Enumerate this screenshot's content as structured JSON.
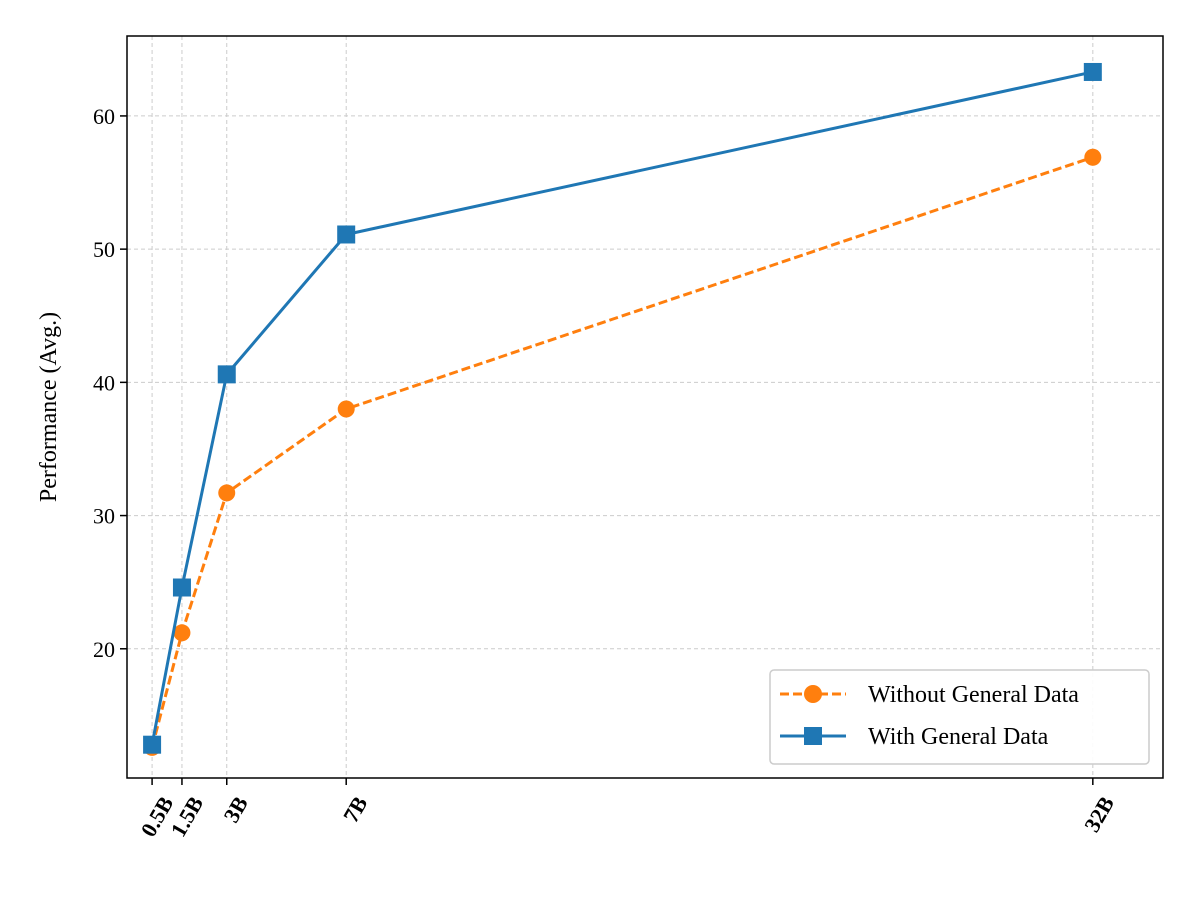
{
  "chart_data": {
    "type": "line",
    "title": "",
    "xlabel": "",
    "ylabel": "Performance (Avg.)",
    "x_values": [
      0.5,
      1.5,
      3,
      7,
      32
    ],
    "x_tick_labels": [
      "0.5B",
      "1.5B",
      "3B",
      "7B",
      "32B"
    ],
    "ylim": [
      10.3,
      66
    ],
    "y_ticks": [
      20,
      30,
      40,
      50,
      60
    ],
    "grid": true,
    "legend_position": "lower-right",
    "series": [
      {
        "name": "Without General Data",
        "values": [
          12.6,
          21.2,
          31.7,
          38.0,
          56.9
        ],
        "color": "#ff7f0e",
        "line_style": "dashed",
        "marker": "circle"
      },
      {
        "name": "With General Data",
        "values": [
          12.8,
          24.6,
          40.6,
          51.1,
          63.3
        ],
        "color": "#1f77b4",
        "line_style": "solid",
        "marker": "square"
      }
    ]
  }
}
